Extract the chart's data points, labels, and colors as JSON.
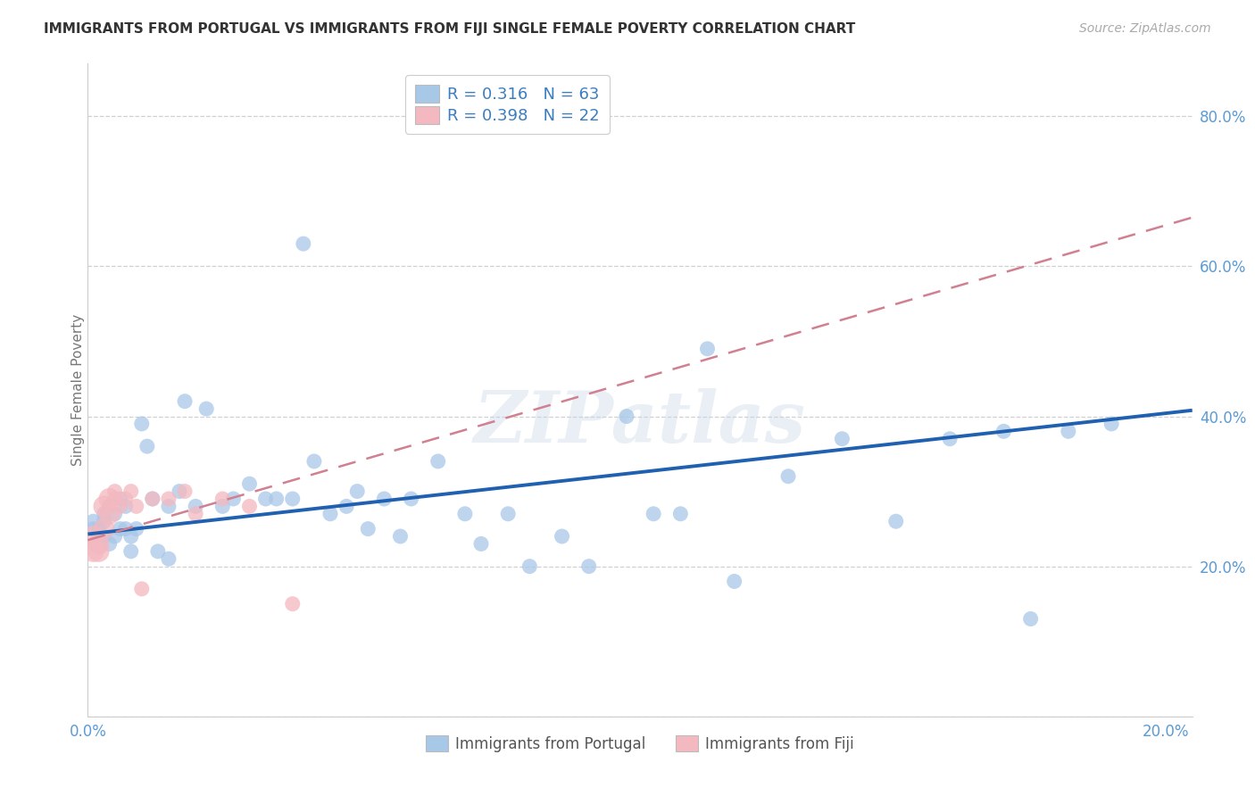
{
  "title": "IMMIGRANTS FROM PORTUGAL VS IMMIGRANTS FROM FIJI SINGLE FEMALE POVERTY CORRELATION CHART",
  "source": "Source: ZipAtlas.com",
  "ylabel": "Single Female Poverty",
  "xlim": [
    0.0,
    0.205
  ],
  "ylim": [
    0.0,
    0.87
  ],
  "xtick_vals": [
    0.0,
    0.05,
    0.1,
    0.15,
    0.2
  ],
  "xtick_labels": [
    "0.0%",
    "",
    "",
    "",
    "20.0%"
  ],
  "ytick_vals": [
    0.0,
    0.2,
    0.4,
    0.6,
    0.8
  ],
  "ytick_labels": [
    "",
    "20.0%",
    "40.0%",
    "60.0%",
    "80.0%"
  ],
  "legend1_label": "R = 0.316   N = 63",
  "legend2_label": "R = 0.398   N = 22",
  "color_portugal": "#a8c8e8",
  "color_fiji": "#f4b8c0",
  "color_portugal_line": "#2060b0",
  "color_fiji_line": "#d08090",
  "watermark": "ZIPatlas",
  "tick_color": "#5b9bd5",
  "portugal_x": [
    0.001,
    0.001,
    0.002,
    0.002,
    0.003,
    0.003,
    0.003,
    0.004,
    0.004,
    0.005,
    0.005,
    0.006,
    0.006,
    0.007,
    0.007,
    0.008,
    0.008,
    0.009,
    0.01,
    0.011,
    0.012,
    0.013,
    0.015,
    0.015,
    0.017,
    0.018,
    0.02,
    0.022,
    0.025,
    0.027,
    0.03,
    0.033,
    0.035,
    0.038,
    0.04,
    0.042,
    0.045,
    0.048,
    0.05,
    0.052,
    0.055,
    0.058,
    0.06,
    0.065,
    0.07,
    0.073,
    0.078,
    0.082,
    0.088,
    0.093,
    0.1,
    0.105,
    0.11,
    0.115,
    0.12,
    0.13,
    0.14,
    0.15,
    0.16,
    0.17,
    0.175,
    0.182,
    0.19
  ],
  "portugal_y": [
    0.26,
    0.25,
    0.25,
    0.24,
    0.27,
    0.26,
    0.24,
    0.28,
    0.23,
    0.27,
    0.24,
    0.29,
    0.25,
    0.28,
    0.25,
    0.24,
    0.22,
    0.25,
    0.39,
    0.36,
    0.29,
    0.22,
    0.28,
    0.21,
    0.3,
    0.42,
    0.28,
    0.41,
    0.28,
    0.29,
    0.31,
    0.29,
    0.29,
    0.29,
    0.63,
    0.34,
    0.27,
    0.28,
    0.3,
    0.25,
    0.29,
    0.24,
    0.29,
    0.34,
    0.27,
    0.23,
    0.27,
    0.2,
    0.24,
    0.2,
    0.4,
    0.27,
    0.27,
    0.49,
    0.18,
    0.32,
    0.37,
    0.26,
    0.37,
    0.38,
    0.13,
    0.38,
    0.39
  ],
  "fiji_x": [
    0.001,
    0.001,
    0.002,
    0.002,
    0.003,
    0.003,
    0.004,
    0.004,
    0.005,
    0.005,
    0.006,
    0.007,
    0.008,
    0.009,
    0.01,
    0.012,
    0.015,
    0.018,
    0.02,
    0.025,
    0.03,
    0.038
  ],
  "fiji_y": [
    0.24,
    0.22,
    0.23,
    0.22,
    0.28,
    0.25,
    0.29,
    0.27,
    0.3,
    0.29,
    0.28,
    0.29,
    0.3,
    0.28,
    0.17,
    0.29,
    0.29,
    0.3,
    0.27,
    0.29,
    0.28,
    0.15
  ],
  "portugal_line_x": [
    0.0,
    0.205
  ],
  "portugal_line_y": [
    0.243,
    0.408
  ],
  "fiji_line_x": [
    0.0,
    0.205
  ],
  "fiji_line_y": [
    0.235,
    0.665
  ]
}
